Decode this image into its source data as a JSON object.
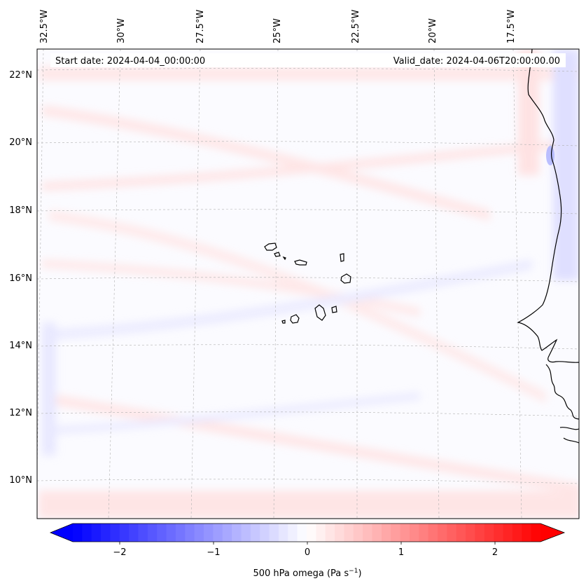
{
  "map": {
    "start_label": "Start date: 2024-04-04_00:00:00",
    "valid_label": "Valid_date: 2024-04-06T20:00:00.00",
    "lon_labels": [
      "32.5°W",
      "30°W",
      "27.5°W",
      "25°W",
      "22.5°W",
      "20°W",
      "17.5°W"
    ],
    "lat_labels": [
      "22°N",
      "20°N",
      "18°N",
      "16°N",
      "14°N",
      "12°N",
      "10°N"
    ],
    "colorbar": {
      "ticks": [
        "−2",
        "−1",
        "0",
        "1",
        "2"
      ],
      "label": "500 hPa omega (Pa s",
      "label_sup": "−1",
      "label_end": ")",
      "min": -2.5,
      "max": 2.5
    },
    "colors": {
      "negative": "#0000ff",
      "positive": "#ff0000",
      "neutral": "#ffffff",
      "coast": "#000000",
      "grid": "#b0b0b0"
    }
  }
}
